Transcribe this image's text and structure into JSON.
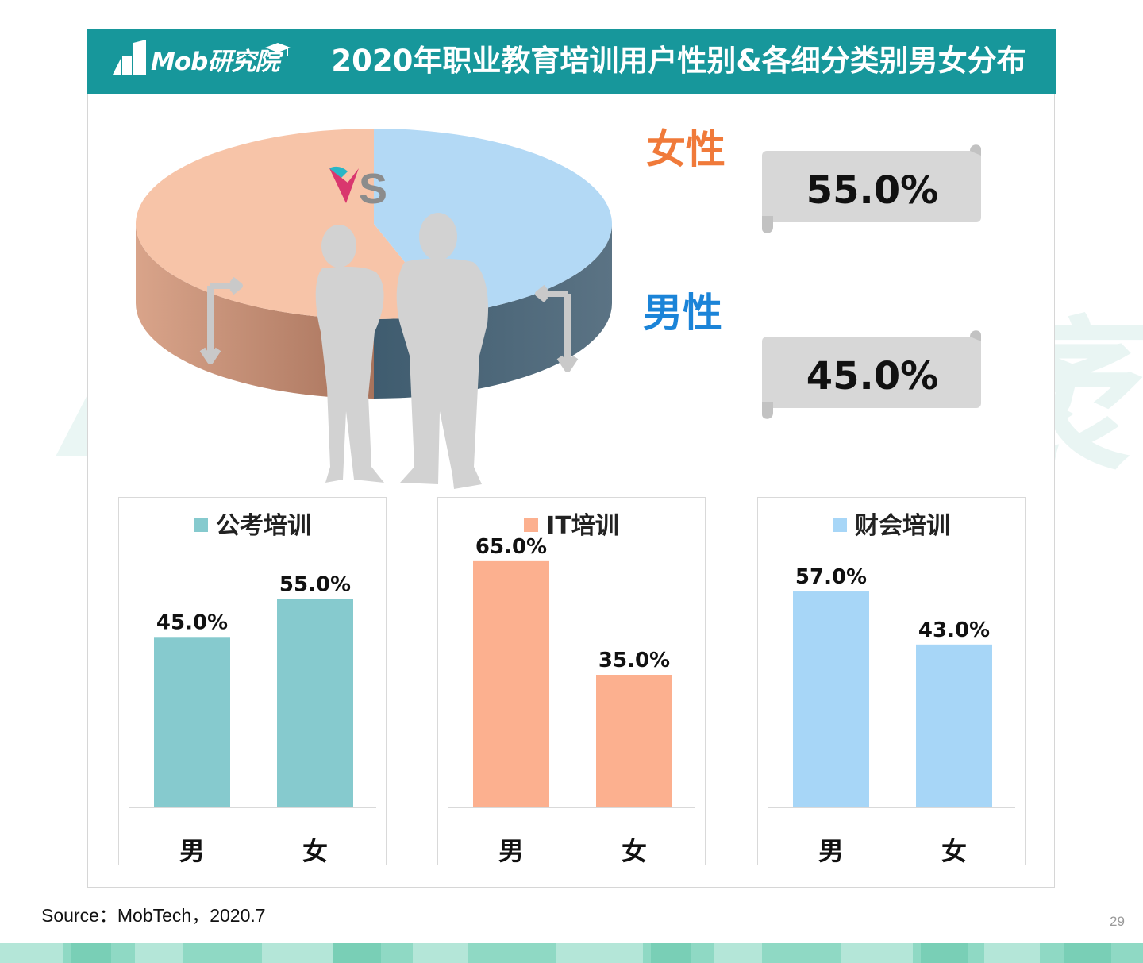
{
  "header": {
    "logo_text": "Mob研究院",
    "title": "2020年职业教育培训用户性别&各细分类别男女分布",
    "bg_color": "#17979b"
  },
  "watermark": {
    "text": "MobTech袤博"
  },
  "overview": {
    "vs_text": "VS",
    "female": {
      "label": "女性",
      "value": "55.0%",
      "color": "#f07a3a"
    },
    "male": {
      "label": "男性",
      "value": "45.0%",
      "color": "#1b84d8"
    }
  },
  "chart_data": [
    {
      "type": "pie",
      "slices": [
        {
          "label": "女性",
          "value": 55.0,
          "color": "#f7c4a8"
        },
        {
          "label": "男性",
          "value": 45.0,
          "color": "#b3d9f5"
        }
      ]
    },
    {
      "type": "bar",
      "title": "公考培训",
      "categories": [
        "男",
        "女"
      ],
      "values": [
        45.0,
        55.0
      ],
      "value_labels": [
        "45.0%",
        "55.0%"
      ],
      "color": "#86cace",
      "ylim": [
        0,
        70
      ]
    },
    {
      "type": "bar",
      "title": "IT培训",
      "categories": [
        "男",
        "女"
      ],
      "values": [
        65.0,
        35.0
      ],
      "value_labels": [
        "65.0%",
        "35.0%"
      ],
      "color": "#fcb08f",
      "ylim": [
        0,
        70
      ]
    },
    {
      "type": "bar",
      "title": "财会培训",
      "categories": [
        "男",
        "女"
      ],
      "values": [
        57.0,
        43.0
      ],
      "value_labels": [
        "57.0%",
        "43.0%"
      ],
      "color": "#a7d6f7",
      "ylim": [
        0,
        70
      ]
    }
  ],
  "footer": {
    "source": "Source：MobTech，2020.7",
    "page_number": "29"
  }
}
